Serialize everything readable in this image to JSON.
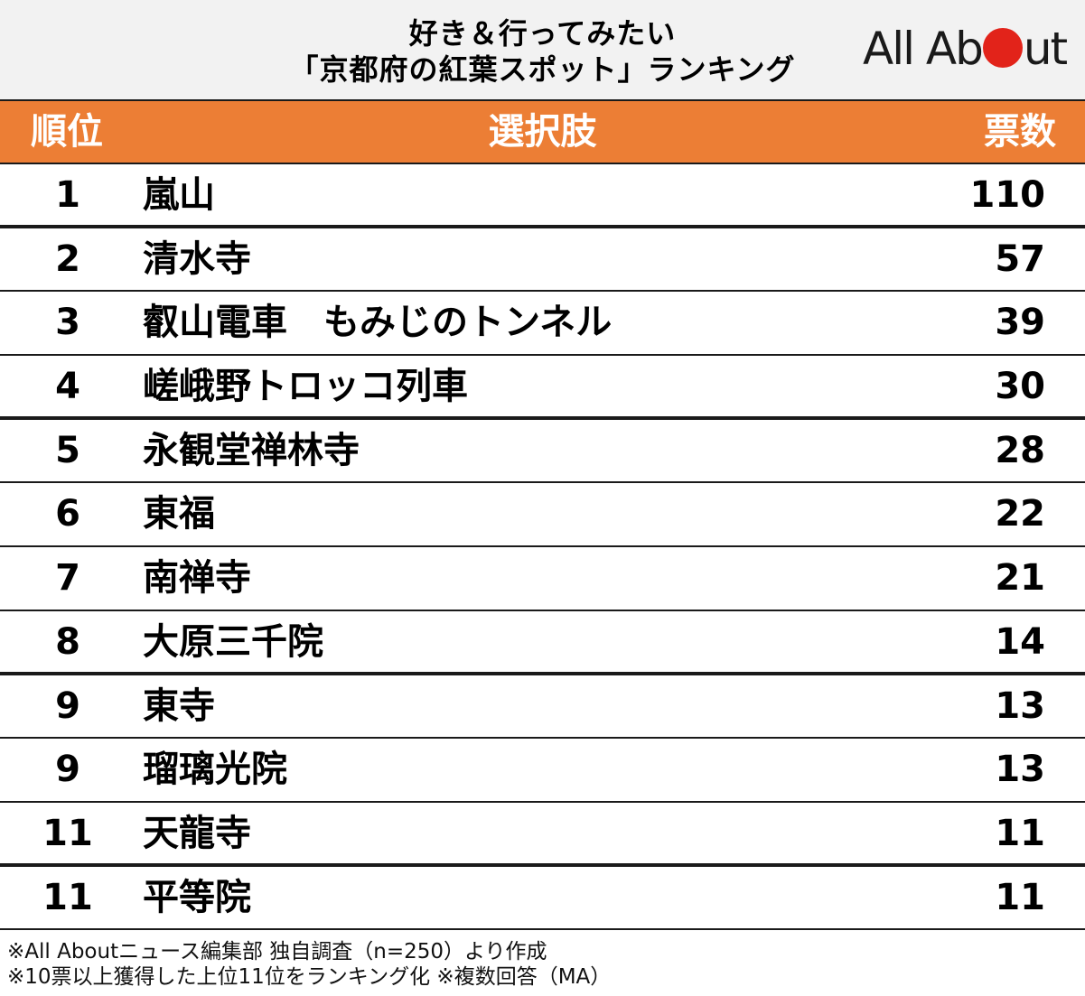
{
  "header": {
    "title_line1": "好き＆行ってみたい",
    "title_line2": "「京都府の紅葉スポット」ランキング",
    "logo": {
      "pre": "All Ab",
      "post": "ut",
      "dot_color": "#e2231a"
    }
  },
  "columns": {
    "rank": "順位",
    "choice": "選択肢",
    "votes": "票数"
  },
  "rows": [
    {
      "rank": "1",
      "name": "嵐山",
      "votes": "110"
    },
    {
      "rank": "2",
      "name": "清水寺",
      "votes": "57"
    },
    {
      "rank": "3",
      "name": "叡山電車　もみじのトンネル",
      "votes": "39"
    },
    {
      "rank": "4",
      "name": "嵯峨野トロッコ列車",
      "votes": "30"
    },
    {
      "rank": "5",
      "name": "永観堂禅林寺",
      "votes": "28"
    },
    {
      "rank": "6",
      "name": "東福",
      "votes": "22"
    },
    {
      "rank": "7",
      "name": "南禅寺",
      "votes": "21"
    },
    {
      "rank": "8",
      "name": "大原三千院",
      "votes": "14"
    },
    {
      "rank": "9",
      "name": "東寺",
      "votes": "13"
    },
    {
      "rank": "9",
      "name": "瑠璃光院",
      "votes": "13"
    },
    {
      "rank": "11",
      "name": "天龍寺",
      "votes": "11"
    },
    {
      "rank": "11",
      "name": "平等院",
      "votes": "11"
    }
  ],
  "footer": {
    "line1": "※All Aboutニュース編集部 独自調査（n=250）より作成",
    "line2": "※10票以上獲得した上位11位をランキング化  ※複数回答（MA）"
  },
  "colors": {
    "header_bg": "#ec7e35",
    "title_bg": "#f2f2f2",
    "text": "#000000"
  },
  "chart_data": {
    "type": "table",
    "title": "好き＆行ってみたい「京都府の紅葉スポット」ランキング",
    "columns": [
      "順位",
      "選択肢",
      "票数"
    ],
    "categories": [
      "嵐山",
      "清水寺",
      "叡山電車　もみじのトンネル",
      "嵯峨野トロッコ列車",
      "永観堂禅林寺",
      "東福",
      "南禅寺",
      "大原三千院",
      "東寺",
      "瑠璃光院",
      "天龍寺",
      "平等院"
    ],
    "ranks": [
      1,
      2,
      3,
      4,
      5,
      6,
      7,
      8,
      9,
      9,
      11,
      11
    ],
    "values": [
      110,
      57,
      39,
      30,
      28,
      22,
      21,
      14,
      13,
      13,
      11,
      11
    ],
    "notes": [
      "※All Aboutニュース編集部 独自調査（n=250）より作成",
      "※10票以上獲得した上位11位をランキング化",
      "※複数回答（MA）"
    ]
  }
}
